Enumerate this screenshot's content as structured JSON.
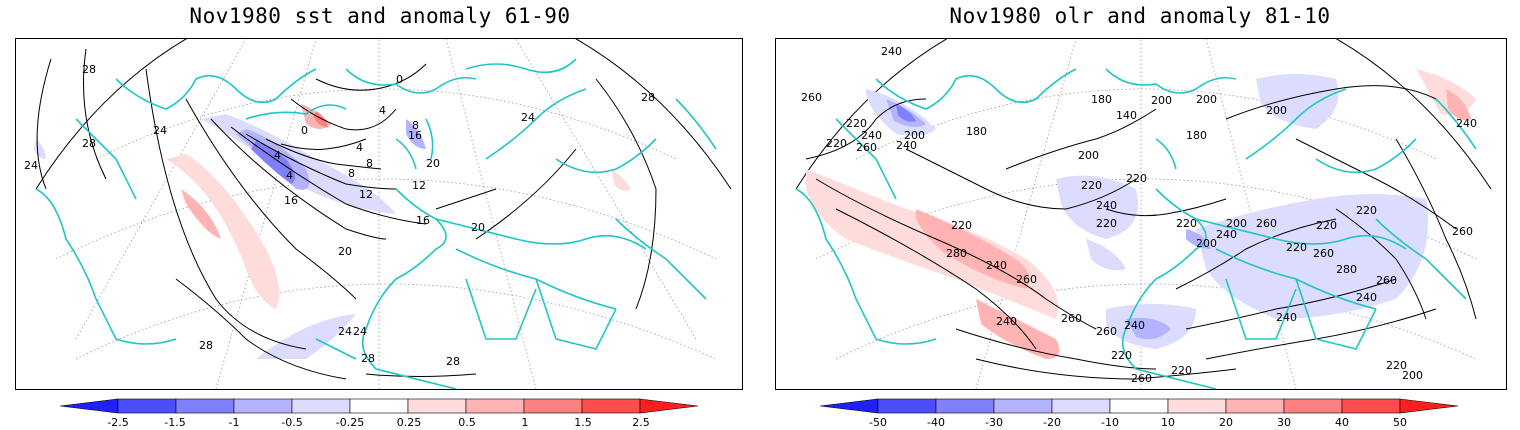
{
  "panels": [
    {
      "title": "Nov1980 sst and anomaly 61-90",
      "variable": "sst",
      "colorbar": {
        "colors": [
          "#1f1fff",
          "#4d4dff",
          "#8080ff",
          "#b3b3ff",
          "#dcdcff",
          "#ffffff",
          "#ffdcdc",
          "#ffb3b3",
          "#ff8080",
          "#ff4d4d",
          "#ff1f1f"
        ],
        "tick_labels": [
          "-2.5",
          "-1.5",
          "-1",
          "-0.5",
          "-0.25",
          "0.25",
          "0.5",
          "1",
          "1.5",
          "2.5"
        ]
      },
      "contour_labels": [
        "28",
        "24",
        "28",
        "24",
        "28",
        "24",
        "20",
        "16",
        "12",
        "8",
        "4",
        "4",
        "0",
        "4",
        "8",
        "16",
        "12",
        "20",
        "24",
        "28",
        "28",
        "28",
        "24",
        "20",
        "16",
        "8",
        "4",
        "0"
      ]
    },
    {
      "title": "Nov1980 olr and anomaly 81-10",
      "variable": "olr",
      "colorbar": {
        "colors": [
          "#1f1fff",
          "#4d4dff",
          "#8080ff",
          "#b3b3ff",
          "#dcdcff",
          "#ffffff",
          "#ffdcdc",
          "#ffb3b3",
          "#ff8080",
          "#ff4d4d",
          "#ff1f1f"
        ],
        "tick_labels": [
          "-50",
          "-40",
          "-30",
          "-20",
          "-10",
          "10",
          "20",
          "30",
          "40",
          "50"
        ]
      },
      "contour_labels": [
        "240",
        "260",
        "220",
        "240",
        "260",
        "220",
        "240",
        "200",
        "180",
        "140",
        "180",
        "200",
        "200",
        "180",
        "200",
        "220",
        "200",
        "220",
        "240",
        "220",
        "220",
        "280",
        "220",
        "240",
        "260",
        "240",
        "260",
        "260",
        "240",
        "220",
        "220",
        "240",
        "260",
        "280",
        "260",
        "240",
        "260",
        "220",
        "200",
        "240",
        "200",
        "260",
        "220",
        "220",
        "260",
        "220",
        "200",
        "240"
      ]
    }
  ],
  "map_colors": {
    "coast": "#20c5c5",
    "contour": "#000000",
    "grid": "#9a9a9a"
  }
}
